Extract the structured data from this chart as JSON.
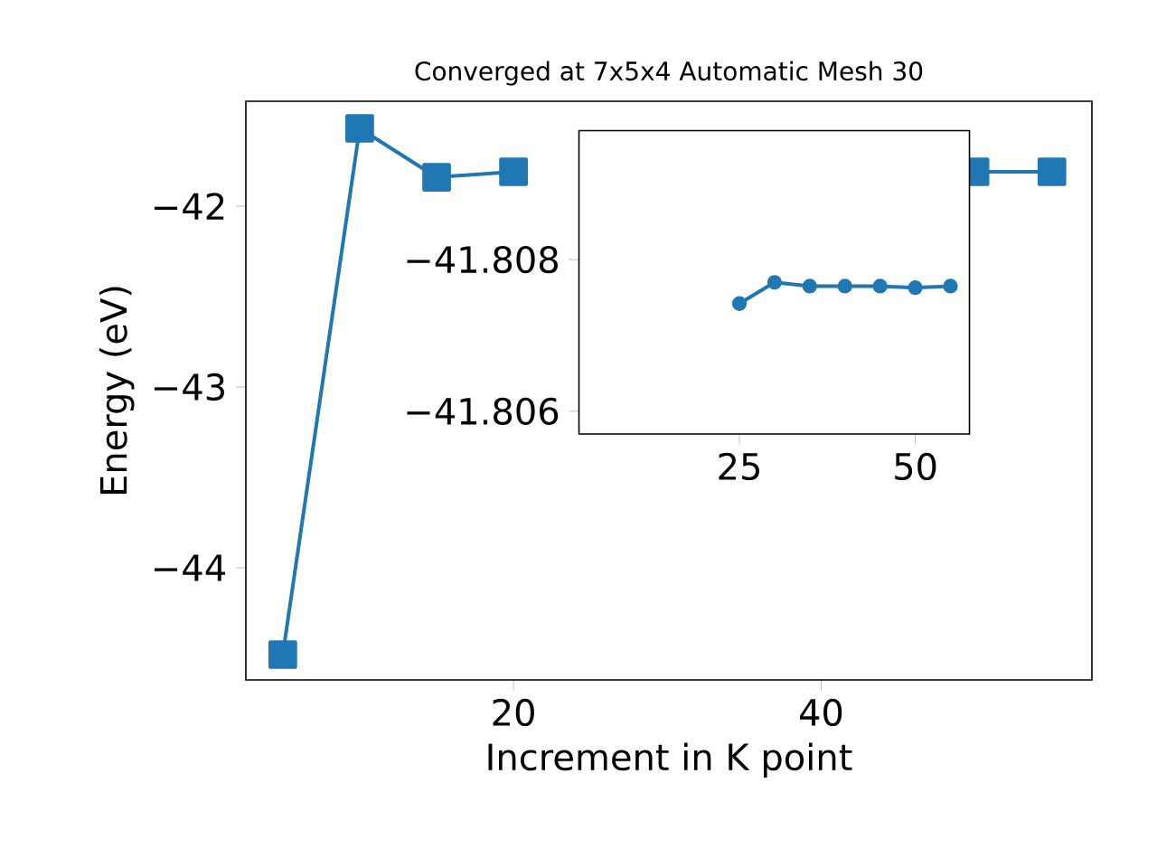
{
  "chart_data": [
    {
      "type": "line",
      "title": "Converged at 7x5x4 Automatic Mesh 30",
      "xlabel": "Increment in K point",
      "ylabel": "Energy (eV)",
      "x": [
        5,
        10,
        15,
        20,
        25,
        30,
        35,
        40,
        45,
        50,
        55
      ],
      "values": [
        -44.48,
        -41.57,
        -41.84,
        -41.81,
        null,
        null,
        null,
        null,
        null,
        -41.81,
        -41.81
      ],
      "color": "#1f77b4",
      "marker": "square",
      "line_style": "solid",
      "xlim": [
        2.6,
        57.6
      ],
      "ylim": [
        -44.62,
        -41.42
      ],
      "xticks": [
        20,
        40
      ],
      "yticks": [
        {
          "value": -44,
          "label": "−44"
        },
        {
          "value": -43,
          "label": "−43"
        },
        {
          "value": -42,
          "label": "−42"
        }
      ]
    },
    {
      "type": "line",
      "x": [
        25,
        30,
        35,
        40,
        45,
        50,
        55
      ],
      "values": [
        -41.80742,
        -41.8077,
        -41.80765,
        -41.80765,
        -41.80765,
        -41.80763,
        -41.80765
      ],
      "color": "#1f77b4",
      "marker": "circle",
      "line_style": "solid",
      "xlim": [
        2.2,
        57.7
      ],
      "ylim": [
        -41.8057,
        -41.8097
      ],
      "xticks": [
        25,
        50
      ],
      "yticks": [
        {
          "value": -41.808,
          "label": "−41.808"
        },
        {
          "value": -41.806,
          "label": "−41.806"
        }
      ]
    }
  ]
}
